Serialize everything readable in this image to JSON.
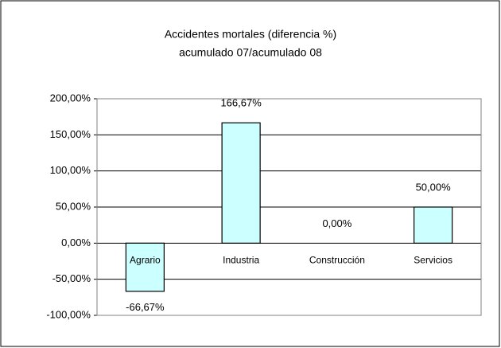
{
  "chart_data": {
    "type": "bar",
    "title": "Accidentes mortales (diferencia %)",
    "subtitle": "acumulado 07/acumulado 08",
    "categories": [
      "Agrario",
      "Industria",
      "Construcción",
      "Servicios"
    ],
    "values": [
      -66.67,
      166.67,
      0,
      50
    ],
    "value_labels": [
      "-66,67%",
      "166,67%",
      "0,00%",
      "50,00%"
    ],
    "color": "#ccffff",
    "ylim": [
      -100,
      200
    ],
    "yticks": [
      {
        "value": -100,
        "label": "-100,00%"
      },
      {
        "value": -50,
        "label": "-50,00%"
      },
      {
        "value": 0,
        "label": "0,00%"
      },
      {
        "value": 50,
        "label": "50,00%"
      },
      {
        "value": 100,
        "label": "100,00%"
      },
      {
        "value": 150,
        "label": "150,00%"
      },
      {
        "value": 200,
        "label": "200,00%"
      }
    ],
    "grid": true
  }
}
